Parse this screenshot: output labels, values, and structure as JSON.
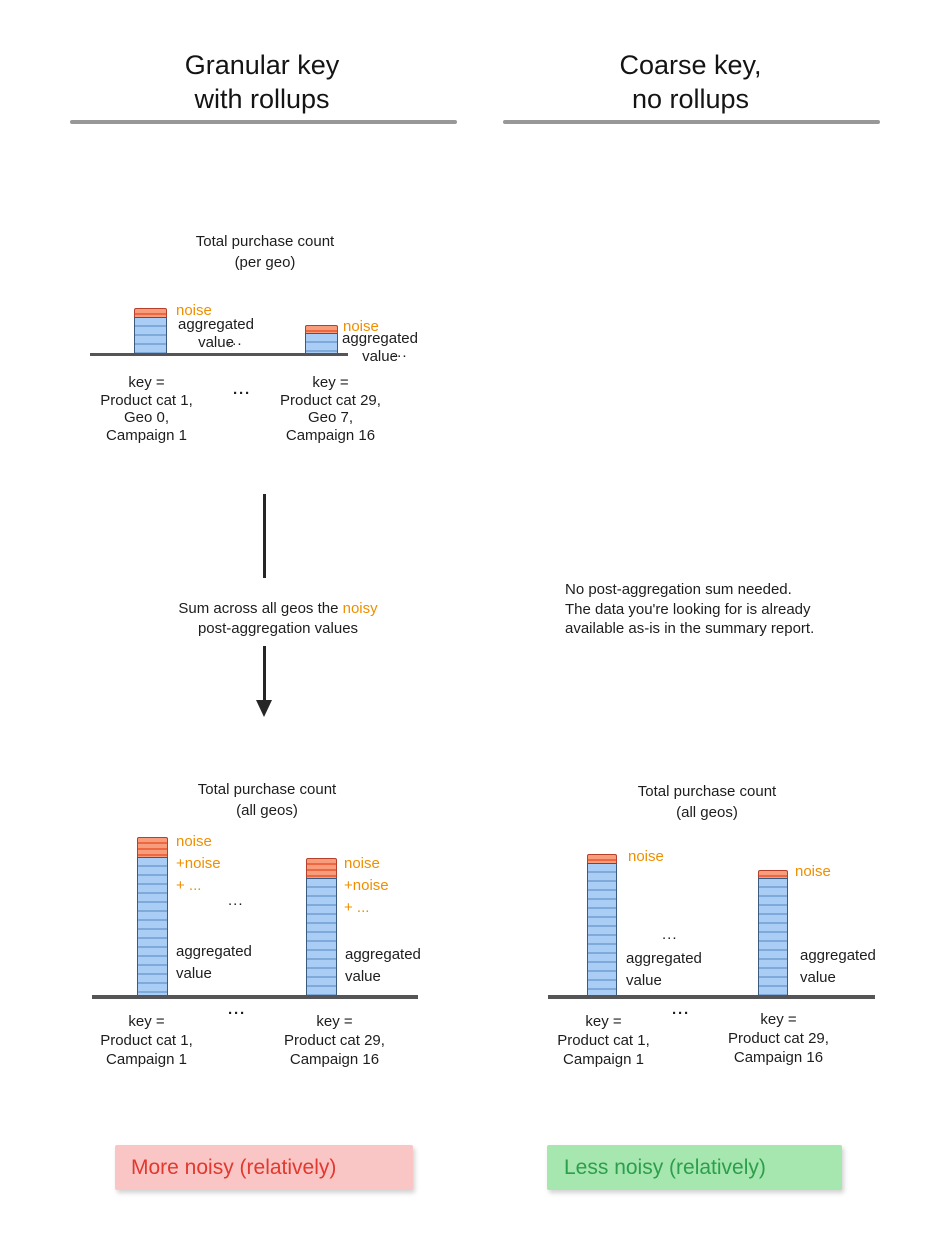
{
  "headers": {
    "left": {
      "line1": "Granular key",
      "line2": "with rollups"
    },
    "right": {
      "line1": "Coarse key,",
      "line2": "no rollups"
    }
  },
  "flow": {
    "sum_line1_pre": "Sum across all geos the ",
    "sum_line1_highlight": "noisy",
    "sum_line2": "post-aggregation values"
  },
  "note": {
    "line1": "No post-aggregation sum needed.",
    "line2": "The data you're looking for is already",
    "line3": "available as-is in the summary report."
  },
  "badges": {
    "left": {
      "label": "More noisy (relatively)",
      "bg": "#f9c6c5",
      "text_color": "#e2382e"
    },
    "right": {
      "label": "Less noisy (relatively)",
      "bg": "#a6e7b0",
      "text_color": "#2d9e4c"
    }
  },
  "colors": {
    "noise_text": "#ef8f00",
    "bar_value_fill": "#a9cdf4",
    "bar_value_stripe": "#7fa9d9",
    "bar_value_border": "#3a5a7e",
    "bar_noise_fill": "#f89d7b",
    "bar_noise_stripe": "#ed6742",
    "bar_noise_border": "#b5402c",
    "axis_line": "#555557",
    "header_rule": "#98989a"
  },
  "chart_data": [
    {
      "id": "total-purchase-count-per-geo",
      "type": "bar",
      "title": "Total purchase count",
      "subtitle": "(per geo)",
      "bars": [
        {
          "key_lines": [
            "key =",
            "Product cat 1,",
            "Geo 0,",
            "Campaign 1"
          ],
          "aggregated_value": 38,
          "noise": 9,
          "noise_label": "noise",
          "agg_lines": [
            "aggregated",
            "value"
          ],
          "more": "..."
        },
        {
          "key_lines": [
            "key =",
            "Product cat 29,",
            "Geo 7,",
            "Campaign 16"
          ],
          "aggregated_value": 22,
          "noise": 8,
          "noise_label": "noise",
          "agg_lines": [
            "aggregated",
            "value"
          ],
          "more": "..."
        }
      ],
      "keys_separator": "···"
    },
    {
      "id": "total-purchase-count-all-geos-granular-rollup",
      "type": "bar",
      "title": "Total purchase count",
      "subtitle": "(all geos)",
      "bars": [
        {
          "key_lines": [
            "key =",
            "Product cat 1,",
            "Campaign 1"
          ],
          "aggregated_value": 140,
          "noise": 20,
          "noise_lines": [
            "noise",
            "+noise",
            "+ ..."
          ],
          "agg_lines": [
            "aggregated",
            "value"
          ]
        },
        {
          "key_lines": [
            "key =",
            "Product cat 29,",
            "Campaign 16"
          ],
          "aggregated_value": 119,
          "noise": 20,
          "noise_lines": [
            "noise",
            "+noise",
            "+ ..."
          ],
          "agg_lines": [
            "aggregated",
            "value"
          ]
        }
      ],
      "bars_separator": "...",
      "keys_separator": "···"
    },
    {
      "id": "total-purchase-count-all-geos-coarse",
      "type": "bar",
      "title": "Total purchase count",
      "subtitle": "(all geos)",
      "bars": [
        {
          "key_lines": [
            "key =",
            "Product cat 1,",
            "Campaign 1"
          ],
          "aggregated_value": 134,
          "noise": 9,
          "noise_label": "noise",
          "agg_lines": [
            "aggregated",
            "value"
          ]
        },
        {
          "key_lines": [
            "key =",
            "Product cat 29,",
            "Campaign 16"
          ],
          "aggregated_value": 119,
          "noise": 8,
          "noise_label": "noise",
          "agg_lines": [
            "aggregated",
            "value"
          ]
        }
      ],
      "bars_separator": "...",
      "keys_separator": "···"
    }
  ]
}
